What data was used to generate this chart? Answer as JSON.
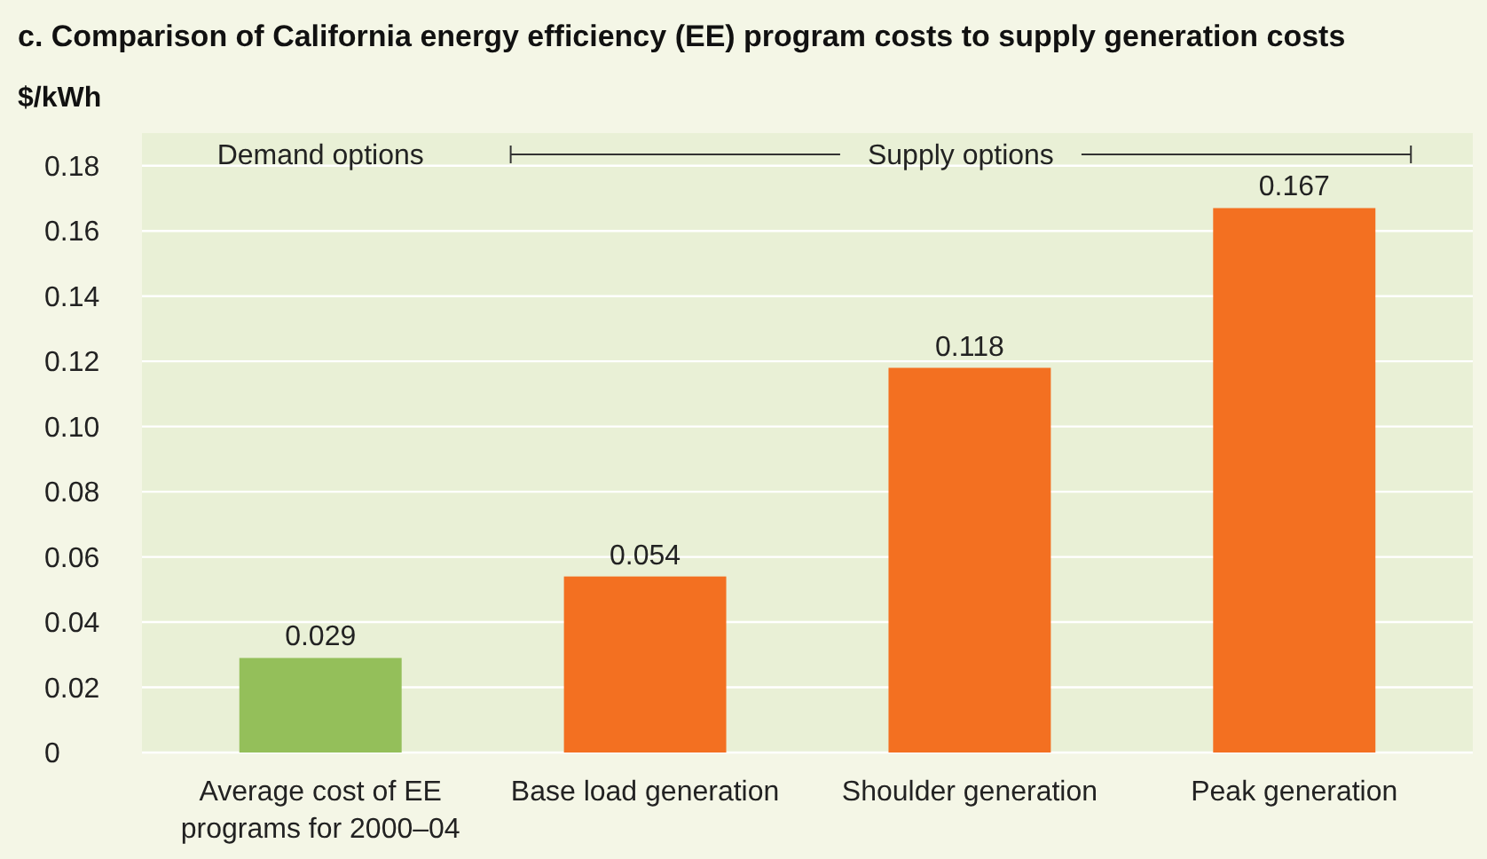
{
  "chart_data": {
    "type": "bar",
    "title": "c. Comparison of California energy efficiency (EE) program costs to supply generation costs",
    "ylabel": "$/kWh",
    "categories": [
      "Average cost of EE programs for 2000–04",
      "Base load generation",
      "Shoulder generation",
      "Peak generation"
    ],
    "values": [
      0.029,
      0.054,
      0.118,
      0.167
    ],
    "colors": [
      "#94bf5a",
      "#f37021",
      "#f37021",
      "#f37021"
    ],
    "ylim": [
      0,
      0.19
    ],
    "yticks": [
      0,
      0.02,
      0.04,
      0.06,
      0.08,
      {
        "value": 0.1,
        "label": "0.10"
      },
      0.12,
      0.14,
      0.16,
      0.18
    ],
    "grid": "y",
    "data_labels": true,
    "annotations": [
      "Demand options",
      "Supply options"
    ]
  }
}
